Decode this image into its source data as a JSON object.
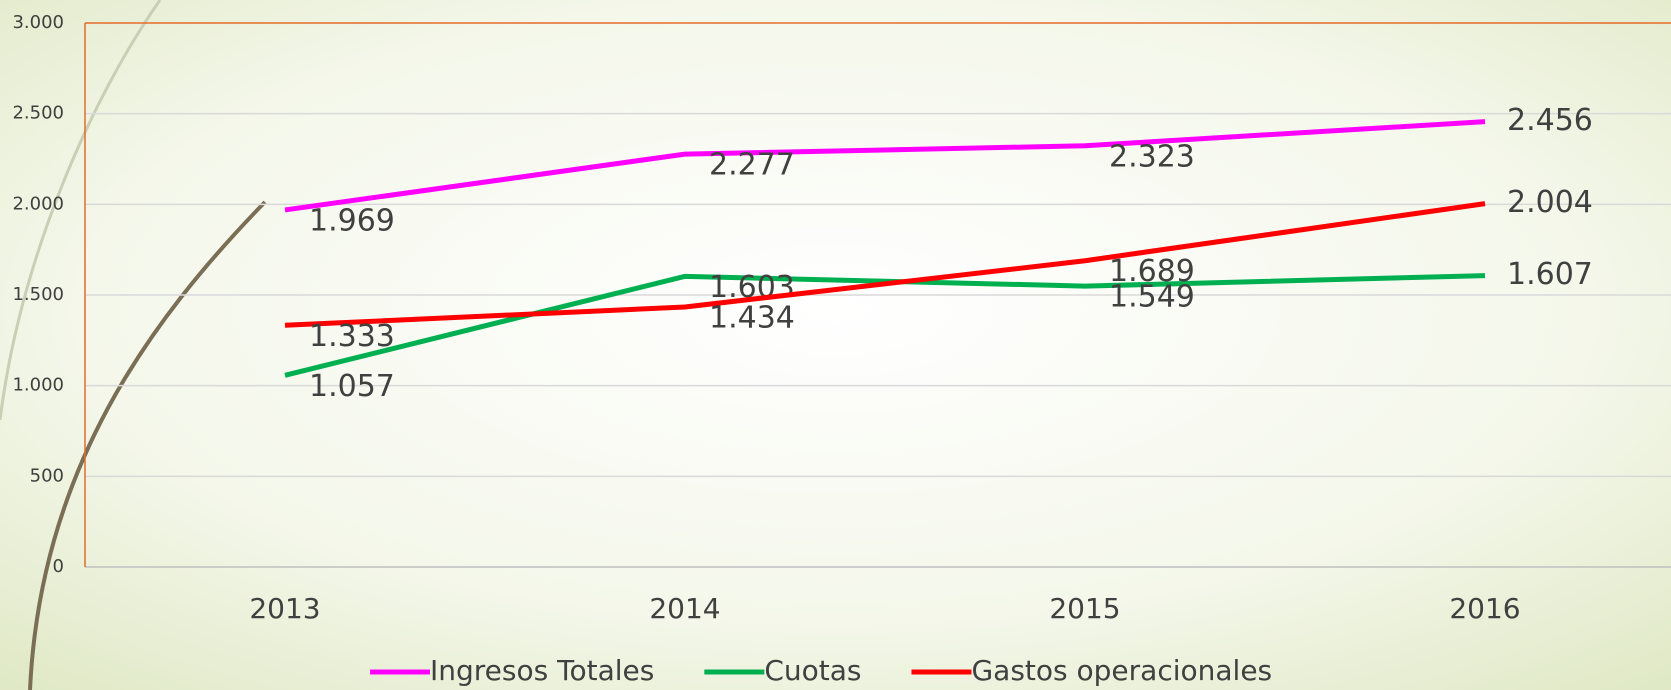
{
  "chart_data": {
    "type": "line",
    "categories": [
      "2013",
      "2014",
      "2015",
      "2016"
    ],
    "series": [
      {
        "name": "Ingresos Totales",
        "color": "#ff00ff",
        "values": [
          1969,
          2277,
          2323,
          2456
        ],
        "value_labels": [
          "1.969",
          "2.277",
          "2.323",
          "2.456"
        ]
      },
      {
        "name": "Cuotas",
        "color": "#00b050",
        "values": [
          1057,
          1603,
          1549,
          1607
        ],
        "value_labels": [
          "1.057",
          "1.603",
          "1.549",
          "1.607"
        ]
      },
      {
        "name": "Gastos operacionales",
        "color": "#ff0000",
        "values": [
          1333,
          1434,
          1689,
          2004
        ],
        "value_labels": [
          "1.333",
          "1.434",
          "1.689",
          "2.004"
        ]
      }
    ],
    "ylim": [
      0,
      3000
    ],
    "yticks": [
      0,
      500,
      {
        "value": 1000,
        "label": "1.000"
      },
      {
        "value": 1500,
        "label": "1.500"
      },
      {
        "value": 2000,
        "label": "2.000"
      },
      {
        "value": 2500,
        "label": "2.500"
      },
      {
        "value": 3000,
        "label": "3.000"
      }
    ],
    "grid": true,
    "legend": "bottom"
  }
}
